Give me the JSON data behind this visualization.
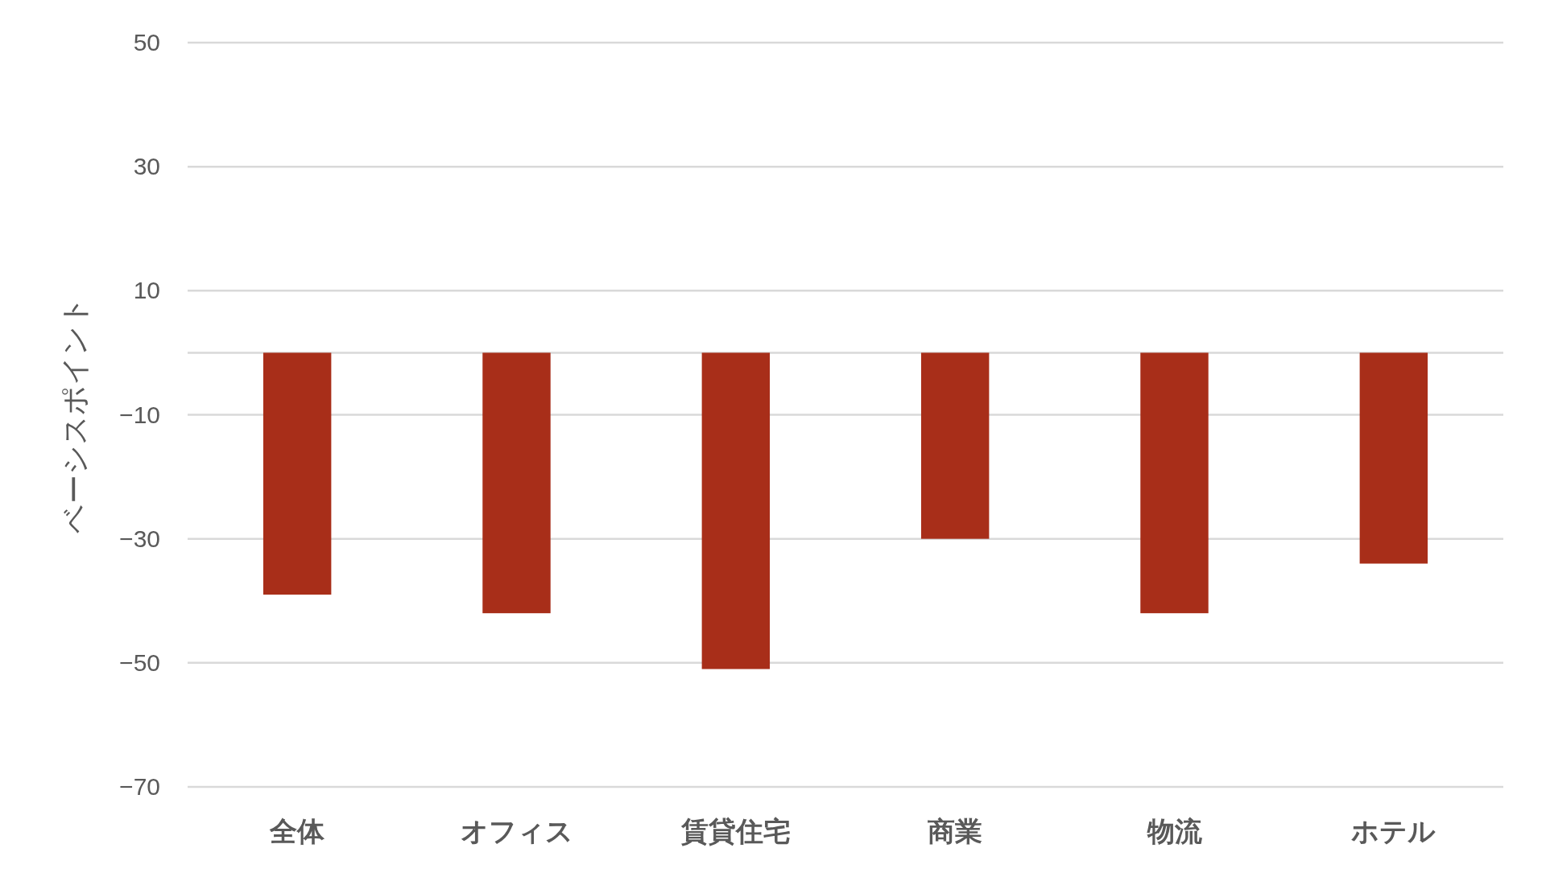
{
  "chart_data": {
    "type": "bar",
    "ylabel": "ベーシスポイント",
    "categories": [
      "全体",
      "オフィス",
      "賃貸住宅",
      "商業",
      "物流",
      "ホテル"
    ],
    "values": [
      -39,
      -42,
      -51,
      -30,
      -42,
      -34
    ],
    "color": "#a82e19",
    "ylim": [
      -70,
      50
    ],
    "yticks": [
      50,
      30,
      10,
      {
        "value": -10,
        "label": "−10"
      },
      {
        "value": -30,
        "label": "−30"
      },
      {
        "value": -50,
        "label": "−50"
      },
      {
        "value": -70,
        "label": "−70"
      }
    ],
    "grid": "y"
  }
}
